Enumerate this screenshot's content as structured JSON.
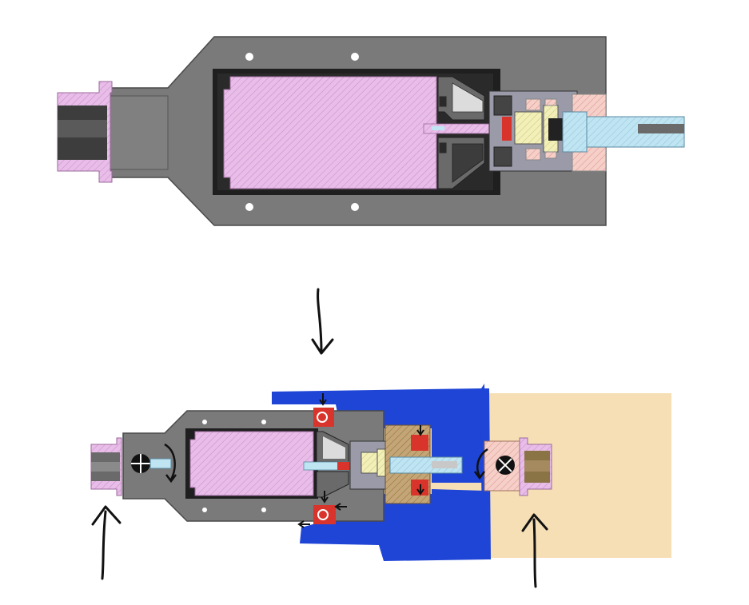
{
  "diagram": {
    "top_section": {
      "label": ""
    },
    "bottom_section": {
      "label": ""
    }
  },
  "colors": {
    "housing_gray": "#7a7a7a",
    "housing_dark": "#4a4a4a",
    "motor_pink": "#e8bde8",
    "hatch_pink": "#c98ac9",
    "shaft_blue": "#bfe4f2",
    "gear_yellow": "#f2f0b8",
    "brick_pink": "#f2b8b0",
    "blue_marker": "#1f45d6",
    "tan_region": "#f7dfb5",
    "red_seal": "#d9342b",
    "bronze": "#a48a5e",
    "ink": "#111111"
  }
}
